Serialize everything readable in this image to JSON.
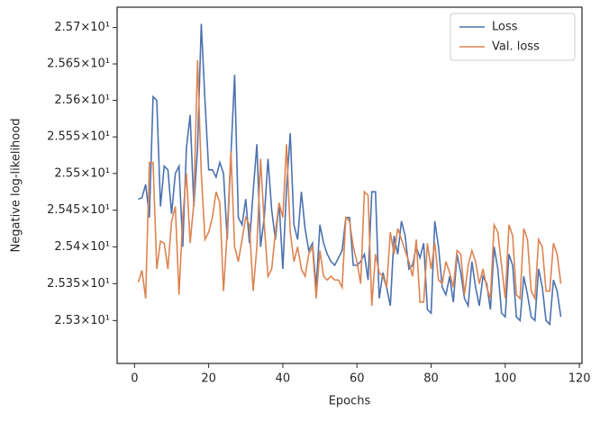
{
  "chart_data": {
    "type": "line",
    "xlabel": "Epochs",
    "ylabel": "Negative log-likelihood",
    "x": [
      1,
      2,
      3,
      4,
      5,
      6,
      7,
      8,
      9,
      10,
      11,
      12,
      13,
      14,
      15,
      16,
      17,
      18,
      19,
      20,
      21,
      22,
      23,
      24,
      25,
      26,
      27,
      28,
      29,
      30,
      31,
      32,
      33,
      34,
      35,
      36,
      37,
      38,
      39,
      40,
      41,
      42,
      43,
      44,
      45,
      46,
      47,
      48,
      49,
      50,
      51,
      52,
      53,
      54,
      55,
      56,
      57,
      58,
      59,
      60,
      61,
      62,
      63,
      64,
      65,
      66,
      67,
      68,
      69,
      70,
      71,
      72,
      73,
      74,
      75,
      76,
      77,
      78,
      79,
      80,
      81,
      82,
      83,
      84,
      85,
      86,
      87,
      88,
      89,
      90,
      91,
      92,
      93,
      94,
      95,
      96,
      97,
      98,
      99,
      100,
      101,
      102,
      103,
      104,
      105,
      106,
      107,
      108,
      109,
      110,
      111,
      112,
      113,
      114,
      115
    ],
    "series": [
      {
        "name": "Loss",
        "color": "#4c72b0",
        "values": [
          25.465,
          25.467,
          25.485,
          25.44,
          25.605,
          25.6,
          25.455,
          25.51,
          25.505,
          25.445,
          25.5,
          25.51,
          25.4,
          25.535,
          25.58,
          25.455,
          25.535,
          25.705,
          25.6,
          25.505,
          25.505,
          25.495,
          25.515,
          25.5,
          25.41,
          25.525,
          25.635,
          25.44,
          25.43,
          25.465,
          25.405,
          25.475,
          25.54,
          25.4,
          25.44,
          25.52,
          25.45,
          25.41,
          25.46,
          25.37,
          25.48,
          25.555,
          25.43,
          25.41,
          25.475,
          25.425,
          25.395,
          25.405,
          25.345,
          25.43,
          25.405,
          25.39,
          25.38,
          25.375,
          25.385,
          25.395,
          25.44,
          25.44,
          25.375,
          25.375,
          25.38,
          25.39,
          25.355,
          25.475,
          25.475,
          25.33,
          25.365,
          25.345,
          25.32,
          25.415,
          25.39,
          25.435,
          25.415,
          25.37,
          25.375,
          25.4,
          25.385,
          25.405,
          25.315,
          25.31,
          25.435,
          25.4,
          25.345,
          25.335,
          25.36,
          25.325,
          25.39,
          25.365,
          25.33,
          25.32,
          25.38,
          25.345,
          25.32,
          25.36,
          25.35,
          25.315,
          25.4,
          25.37,
          25.31,
          25.305,
          25.39,
          25.375,
          25.305,
          25.3,
          25.36,
          25.335,
          25.305,
          25.3,
          25.37,
          25.345,
          25.3,
          25.295,
          25.355,
          25.34,
          25.305
        ]
      },
      {
        "name": "Val. loss",
        "color": "#dd8452",
        "values": [
          25.352,
          25.368,
          25.33,
          25.515,
          25.515,
          25.37,
          25.408,
          25.405,
          25.37,
          25.435,
          25.455,
          25.335,
          25.44,
          25.5,
          25.405,
          25.46,
          25.655,
          25.5,
          25.41,
          25.42,
          25.44,
          25.475,
          25.46,
          25.34,
          25.42,
          25.53,
          25.4,
          25.38,
          25.41,
          25.44,
          25.43,
          25.34,
          25.4,
          25.52,
          25.43,
          25.36,
          25.37,
          25.42,
          25.46,
          25.44,
          25.54,
          25.42,
          25.38,
          25.4,
          25.37,
          25.36,
          25.39,
          25.4,
          25.33,
          25.395,
          25.36,
          25.355,
          25.36,
          25.355,
          25.355,
          25.345,
          25.44,
          25.435,
          25.4,
          25.38,
          25.35,
          25.475,
          25.47,
          25.32,
          25.39,
          25.365,
          25.36,
          25.345,
          25.42,
          25.39,
          25.425,
          25.41,
          25.395,
          25.38,
          25.36,
          25.41,
          25.325,
          25.325,
          25.405,
          25.37,
          25.405,
          25.355,
          25.35,
          25.38,
          25.365,
          25.345,
          25.395,
          25.39,
          25.335,
          25.375,
          25.395,
          25.38,
          25.35,
          25.37,
          25.345,
          25.33,
          25.43,
          25.42,
          25.375,
          25.33,
          25.43,
          25.415,
          25.335,
          25.33,
          25.425,
          25.41,
          25.34,
          25.33,
          25.41,
          25.4,
          25.34,
          25.34,
          25.405,
          25.39,
          25.35
        ]
      }
    ],
    "xlim": [
      -4.7,
      120.7
    ],
    "xticks": [
      0,
      20,
      40,
      60,
      80,
      100,
      120
    ],
    "ylim": [
      25.242,
      25.728
    ],
    "log_y": true,
    "yticks": [
      {
        "value": 25.3,
        "label": "2.53×10¹"
      },
      {
        "value": 25.35,
        "label": "2.535×10¹"
      },
      {
        "value": 25.4,
        "label": "2.54×10¹"
      },
      {
        "value": 25.45,
        "label": "2.545×10¹"
      },
      {
        "value": 25.5,
        "label": "2.55×10¹"
      },
      {
        "value": 25.55,
        "label": "2.555×10¹"
      },
      {
        "value": 25.6,
        "label": "2.56×10¹"
      },
      {
        "value": 25.65,
        "label": "2.565×10¹"
      },
      {
        "value": 25.7,
        "label": "2.57×10¹"
      }
    ],
    "grid": false,
    "legend": "upper right"
  }
}
